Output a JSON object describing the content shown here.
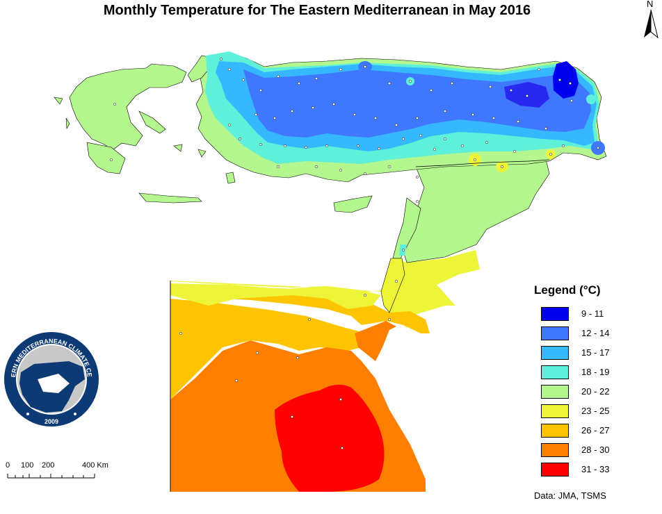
{
  "title": "Monthly Temperature for The Eastern Mediterranean in May 2016",
  "north_label": "N",
  "legend": {
    "title": "Legend (°C)",
    "items": [
      {
        "label": "9 - 11",
        "color": "#0000ee"
      },
      {
        "label": "12 - 14",
        "color": "#3f78ff"
      },
      {
        "label": "15 - 17",
        "color": "#35b8ff"
      },
      {
        "label": "18 - 19",
        "color": "#5ef0d8"
      },
      {
        "label": "20 - 22",
        "color": "#b4f78e"
      },
      {
        "label": "23 - 25",
        "color": "#eef539"
      },
      {
        "label": "26 - 27",
        "color": "#fec400"
      },
      {
        "label": "28 - 30",
        "color": "#fe7f00"
      },
      {
        "label": "31 - 33",
        "color": "#fe0000"
      }
    ]
  },
  "scale_bar": {
    "labels": [
      "0",
      "100",
      "200",
      "400 Km"
    ]
  },
  "source": "Data:  JMA, TSMS",
  "logo": {
    "text": "EASTERN MEDITERRANEAN CLIMATE CENTRE",
    "year": "2009"
  }
}
